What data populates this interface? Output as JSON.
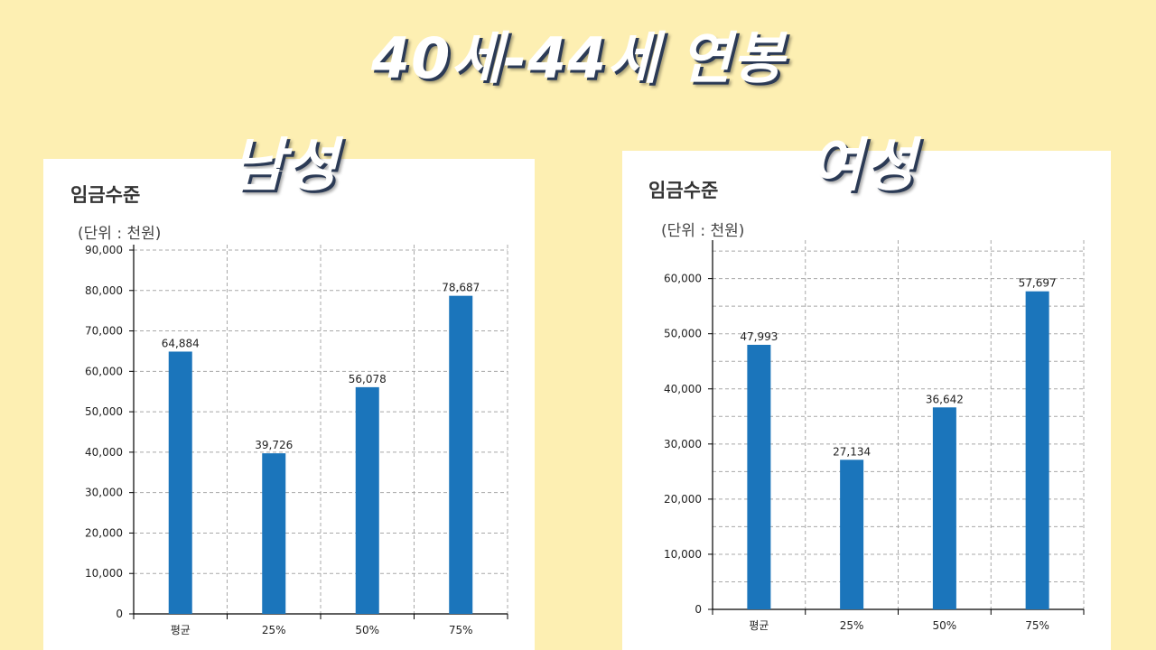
{
  "title": "40세-44세 연봉",
  "colors": {
    "background": "#fdefb2",
    "bar": "#1b75bb"
  },
  "panels": [
    {
      "gender_label": "남성",
      "panel_title": "임금수준",
      "unit": "(단위 : 천원)"
    },
    {
      "gender_label": "여성",
      "panel_title": "임금수준",
      "unit": "(단위 : 천원)"
    }
  ],
  "chart_data": [
    {
      "type": "bar",
      "title": "임금수준",
      "categories": [
        "평균",
        "25%",
        "50%",
        "75%"
      ],
      "values": [
        64884,
        39726,
        56078,
        78687
      ],
      "value_labels": [
        "64,884",
        "39,726",
        "56,078",
        "78,687"
      ],
      "ylim": [
        0,
        90000
      ],
      "yticks": [
        0,
        10000,
        20000,
        30000,
        40000,
        50000,
        60000,
        70000,
        80000,
        90000
      ],
      "ytick_labels": [
        "0",
        "10,000",
        "20,000",
        "30,000",
        "40,000",
        "50,000",
        "60,000",
        "70,000",
        "80,000",
        "90,000"
      ],
      "grid": true
    },
    {
      "type": "bar",
      "title": "임금수준",
      "categories": [
        "평균",
        "25%",
        "50%",
        "75%"
      ],
      "values": [
        47993,
        27134,
        36642,
        57697
      ],
      "value_labels": [
        "47,993",
        "27,134",
        "36,642",
        "57,697"
      ],
      "ylim": [
        0,
        66000
      ],
      "yticks": [
        0,
        10000,
        20000,
        30000,
        40000,
        50000,
        60000
      ],
      "ytick_labels": [
        "0",
        "10,000",
        "20,000",
        "30,000",
        "40,000",
        "50,000",
        "60,000"
      ],
      "grid": true
    }
  ]
}
